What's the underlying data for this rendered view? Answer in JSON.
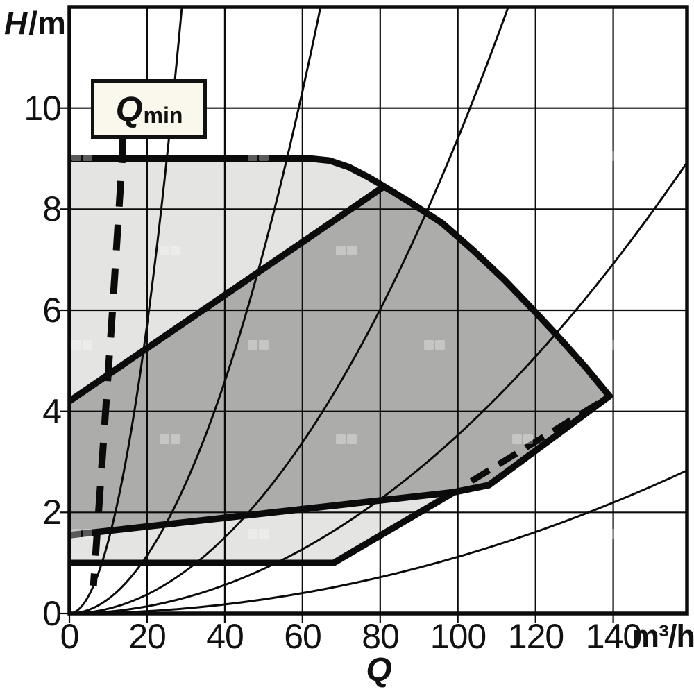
{
  "axes": {
    "y_title_italic": "H",
    "y_title_rest": "/m",
    "x_title": "Q",
    "x_unit": "m³/h"
  },
  "qmin_label": {
    "main": "Q",
    "sub": "min"
  },
  "chart_data": {
    "type": "area",
    "title": "",
    "ylabel": "H/m",
    "xlabel": "Q",
    "x_unit": "m³/h",
    "xlim": [
      0,
      159
    ],
    "ylim": [
      0,
      12
    ],
    "x_ticks": [
      0,
      20,
      40,
      60,
      80,
      100,
      120,
      140
    ],
    "y_ticks": [
      0,
      2,
      4,
      6,
      8,
      10
    ],
    "grid": "on",
    "legend": "none",
    "colors": {
      "outer_region_fill": "#e4e4e2",
      "inner_region_fill": "#acacaa",
      "line": "#0b0b0b",
      "qmin_box_bg": "#faf7ec",
      "watermark": "#ffffff"
    },
    "regions": {
      "outer_envelope": {
        "description": "light operating envelope",
        "top_left": [
          0,
          9
        ],
        "top_curve": [
          [
            62,
            9
          ],
          [
            67,
            8.96
          ],
          [
            72,
            8.83
          ],
          [
            77,
            8.63
          ],
          [
            81,
            8.45
          ],
          [
            88,
            8.12
          ],
          [
            96,
            7.72
          ],
          [
            104,
            7.18
          ],
          [
            112,
            6.6
          ],
          [
            120,
            5.96
          ],
          [
            127,
            5.38
          ],
          [
            133,
            4.86
          ],
          [
            139,
            4.3
          ]
        ],
        "lower_right": [
          [
            108,
            2.54
          ],
          [
            99,
            2.4
          ],
          [
            68,
            1
          ]
        ],
        "bottom_left": [
          0,
          1
        ]
      },
      "inner_envelope": {
        "description": "dark operating envelope",
        "upper_edge": [
          [
            0,
            4.2
          ],
          [
            81,
            8.45
          ]
        ],
        "lower_edge": [
          [
            0,
            1.55
          ],
          [
            99,
            2.4
          ]
        ]
      }
    },
    "system_curves": {
      "k_values": [
        0.0143,
        0.00287,
        0.00094,
        0.000353,
        0.000112
      ]
    },
    "qmin_line": {
      "points": [
        [
          13.8,
          9.42
        ],
        [
          13.6,
          9.0
        ],
        [
          11.1,
          6.0
        ],
        [
          9.3,
          4.0
        ],
        [
          7.5,
          2.0
        ],
        [
          6.2,
          0.55
        ]
      ]
    },
    "dashed_segment": [
      [
        103.5,
        2.62
      ],
      [
        137,
        4.2
      ]
    ]
  }
}
